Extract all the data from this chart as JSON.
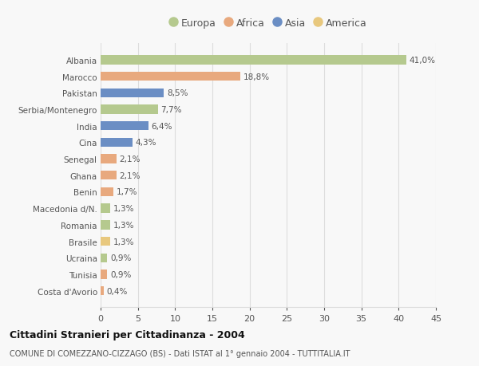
{
  "countries": [
    "Albania",
    "Marocco",
    "Pakistan",
    "Serbia/Montenegro",
    "India",
    "Cina",
    "Senegal",
    "Ghana",
    "Benin",
    "Macedonia d/N.",
    "Romania",
    "Brasile",
    "Ucraina",
    "Tunisia",
    "Costa d'Avorio"
  ],
  "values": [
    41.0,
    18.8,
    8.5,
    7.7,
    6.4,
    4.3,
    2.1,
    2.1,
    1.7,
    1.3,
    1.3,
    1.3,
    0.9,
    0.9,
    0.4
  ],
  "labels": [
    "41,0%",
    "18,8%",
    "8,5%",
    "7,7%",
    "6,4%",
    "4,3%",
    "2,1%",
    "2,1%",
    "1,7%",
    "1,3%",
    "1,3%",
    "1,3%",
    "0,9%",
    "0,9%",
    "0,4%"
  ],
  "colors": [
    "#b5c98e",
    "#e8a97e",
    "#6b8ec4",
    "#b5c98e",
    "#6b8ec4",
    "#6b8ec4",
    "#e8a97e",
    "#e8a97e",
    "#e8a97e",
    "#b5c98e",
    "#b5c98e",
    "#e8c87e",
    "#b5c98e",
    "#e8a97e",
    "#e8a97e"
  ],
  "legend_labels": [
    "Europa",
    "Africa",
    "Asia",
    "America"
  ],
  "legend_colors": [
    "#b5c98e",
    "#e8a97e",
    "#6b8ec4",
    "#e8c87e"
  ],
  "title": "Cittadini Stranieri per Cittadinanza - 2004",
  "subtitle": "COMUNE DI COMEZZANO-CIZZAGO (BS) - Dati ISTAT al 1° gennaio 2004 - TUTTITALIA.IT",
  "xlim": [
    0,
    45
  ],
  "xticks": [
    0,
    5,
    10,
    15,
    20,
    25,
    30,
    35,
    40,
    45
  ],
  "background_color": "#f8f8f8",
  "grid_color": "#dddddd"
}
